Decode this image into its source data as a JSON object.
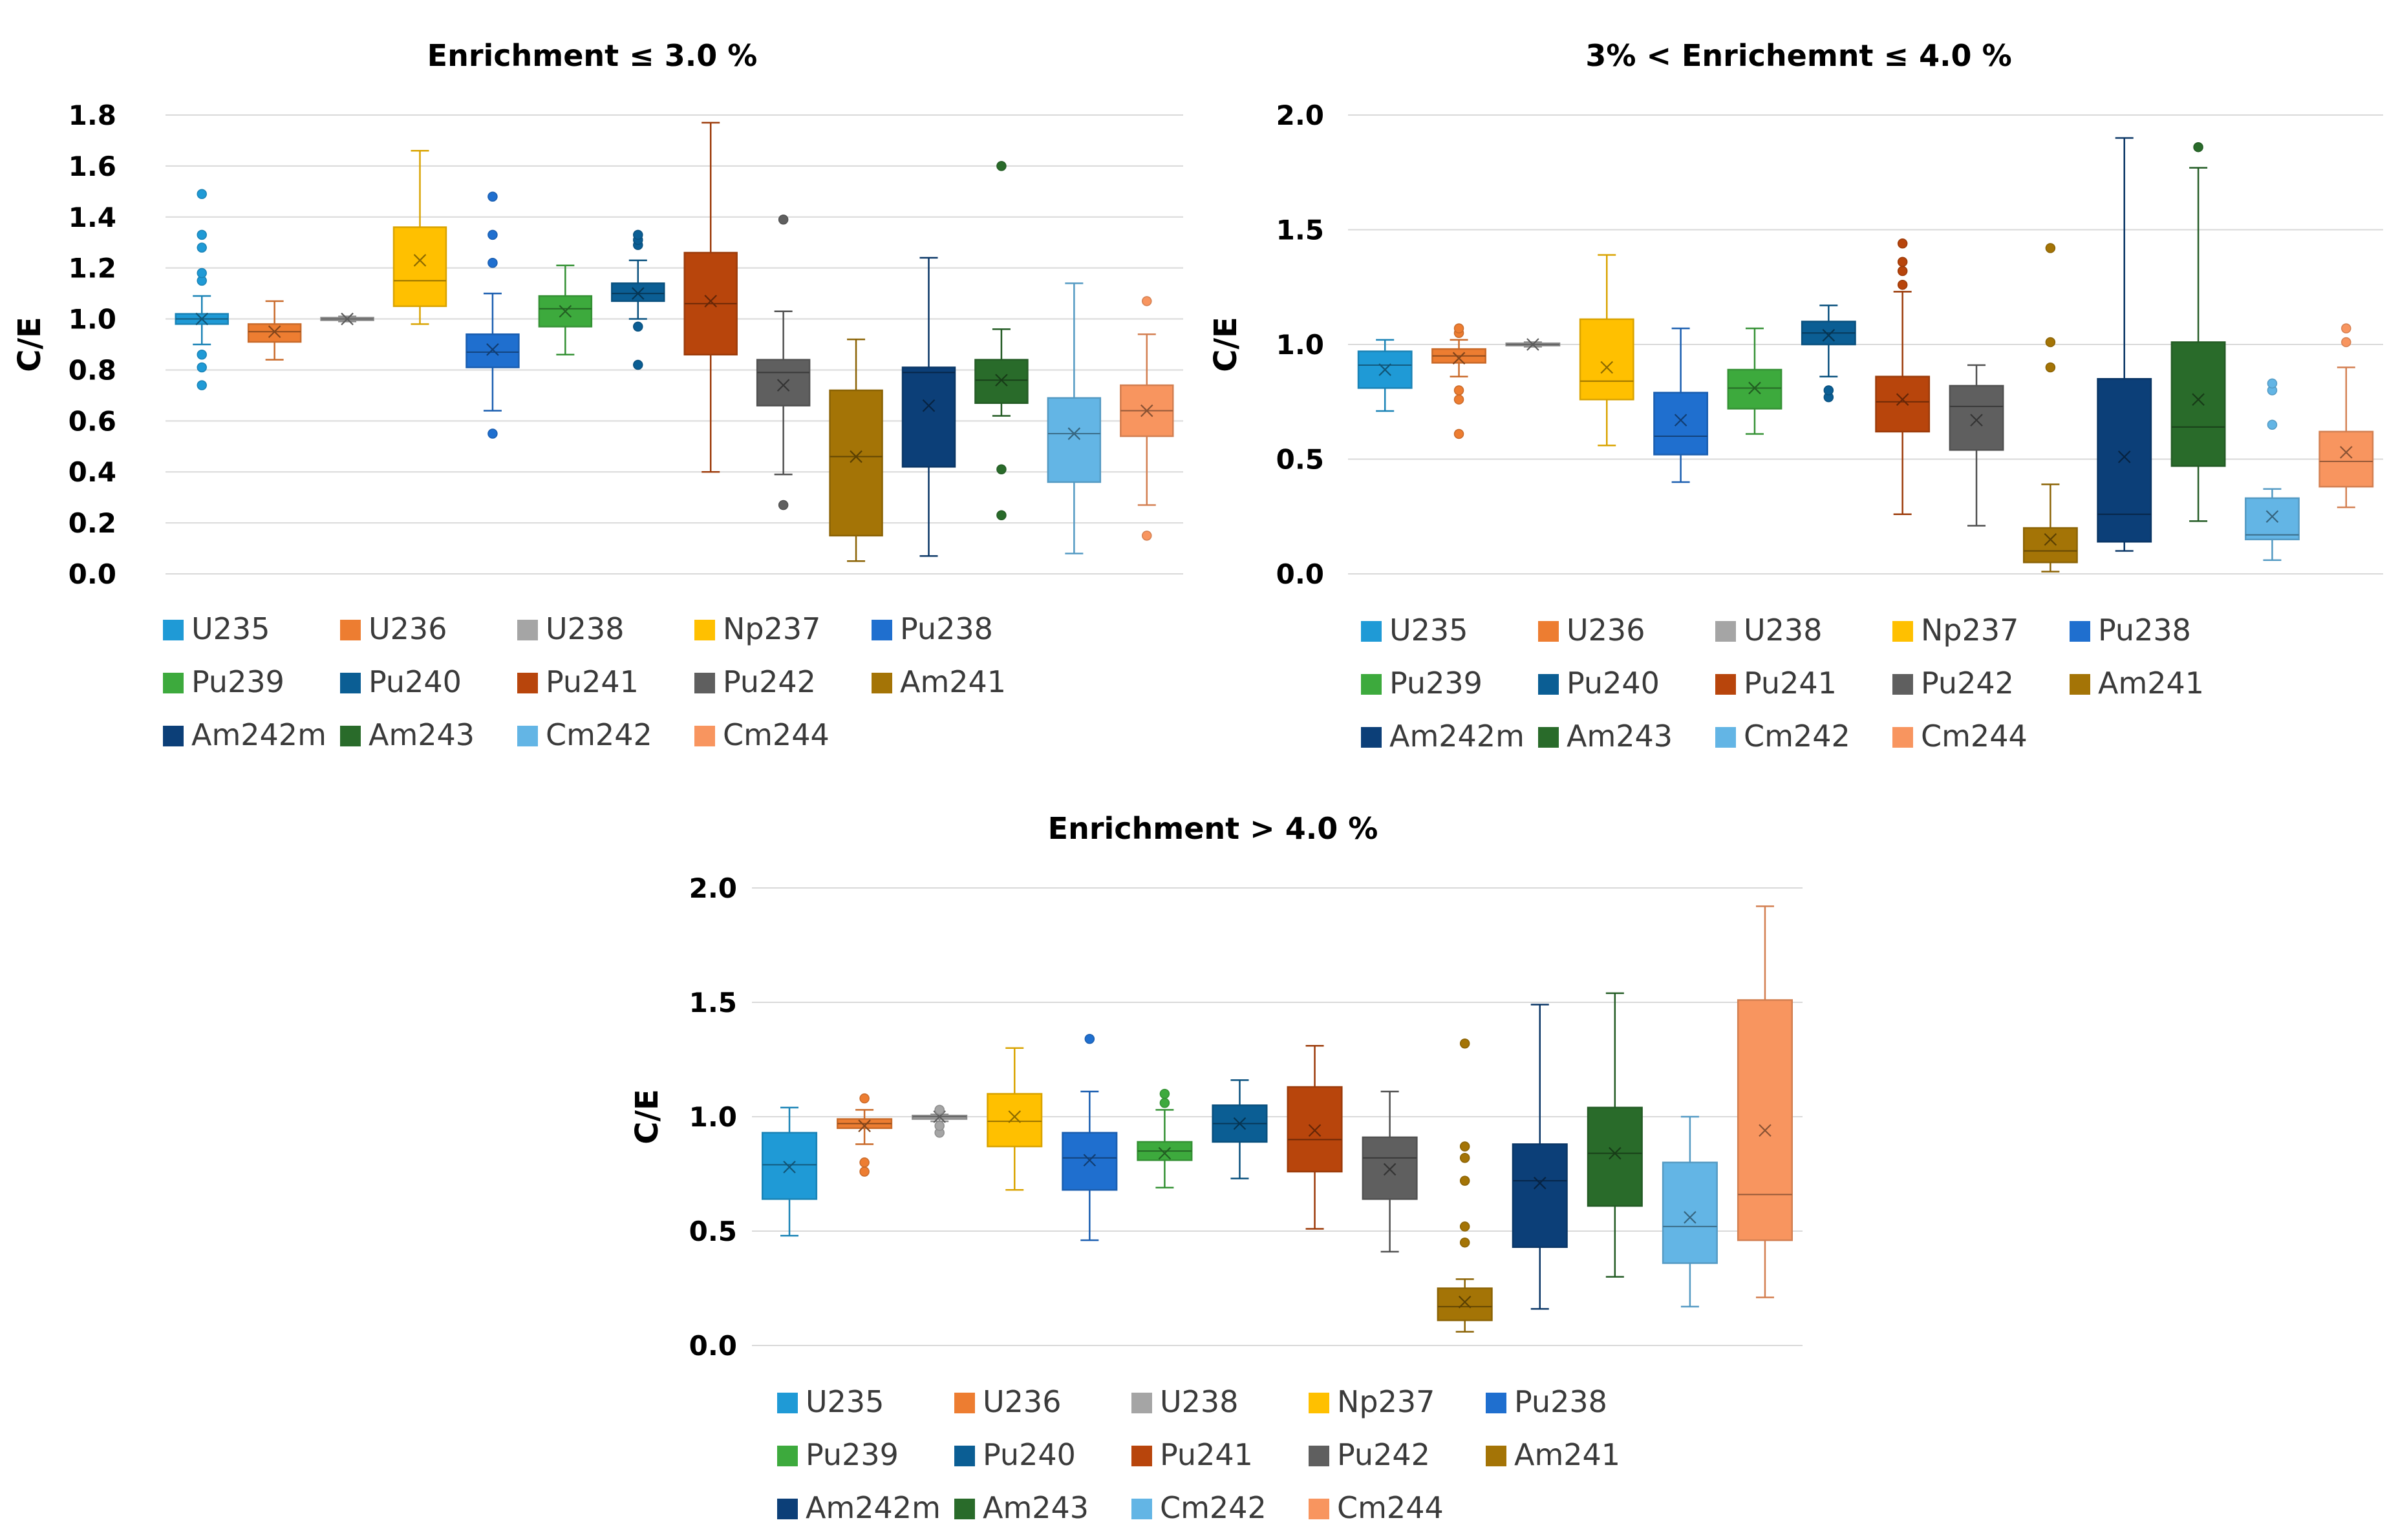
{
  "chart_data": [
    {
      "type": "box",
      "title": "Enrichment ≤ 3.0 %",
      "xlabel": "",
      "ylabel": "C/E",
      "ylim": [
        0.0,
        1.8
      ],
      "yticks": [
        "0.0",
        "0.2",
        "0.4",
        "0.6",
        "0.8",
        "1.0",
        "1.2",
        "1.4",
        "1.6",
        "1.8"
      ],
      "ytick_values": [
        0,
        0.2,
        0.4,
        0.6,
        0.8,
        1.0,
        1.2,
        1.4,
        1.6,
        1.8
      ],
      "grid": true,
      "legend_position": "bottom",
      "series": [
        {
          "name": "U235",
          "color": "#1f9ad6",
          "min": 0.9,
          "q1": 0.98,
          "median": 1.0,
          "q3": 1.02,
          "max": 1.09,
          "mean": 1.0,
          "outliers": [
            0.74,
            0.81,
            0.86,
            1.15,
            1.18,
            1.28,
            1.33,
            1.49
          ]
        },
        {
          "name": "U236",
          "color": "#ed7d31",
          "min": 0.84,
          "q1": 0.91,
          "median": 0.95,
          "q3": 0.98,
          "max": 1.07,
          "mean": 0.95,
          "outliers": []
        },
        {
          "name": "U238",
          "color": "#a5a5a5",
          "min": 0.99,
          "q1": 0.995,
          "median": 1.0,
          "q3": 1.005,
          "max": 1.01,
          "mean": 1.0,
          "outliers": []
        },
        {
          "name": "Np237",
          "color": "#ffc000",
          "min": 0.98,
          "q1": 1.05,
          "median": 1.15,
          "q3": 1.36,
          "max": 1.66,
          "mean": 1.23,
          "outliers": []
        },
        {
          "name": "Pu238",
          "color": "#1f6fcf",
          "min": 0.64,
          "q1": 0.81,
          "median": 0.87,
          "q3": 0.94,
          "max": 1.1,
          "mean": 0.88,
          "outliers": [
            0.55,
            1.22,
            1.33,
            1.48
          ]
        },
        {
          "name": "Pu239",
          "color": "#3daa3d",
          "min": 0.86,
          "q1": 0.97,
          "median": 1.04,
          "q3": 1.09,
          "max": 1.21,
          "mean": 1.03,
          "outliers": []
        },
        {
          "name": "Pu240",
          "color": "#0b5e94",
          "min": 1.0,
          "q1": 1.07,
          "median": 1.1,
          "q3": 1.14,
          "max": 1.23,
          "mean": 1.1,
          "outliers": [
            0.82,
            0.97,
            1.29,
            1.31,
            1.33
          ]
        },
        {
          "name": "Pu241",
          "color": "#b8450c",
          "min": 0.4,
          "q1": 0.86,
          "median": 1.06,
          "q3": 1.26,
          "max": 1.77,
          "mean": 1.07,
          "outliers": []
        },
        {
          "name": "Pu242",
          "color": "#5f5f5f",
          "min": 0.39,
          "q1": 0.66,
          "median": 0.79,
          "q3": 0.84,
          "max": 1.03,
          "mean": 0.74,
          "outliers": [
            0.27,
            1.39
          ]
        },
        {
          "name": "Am241",
          "color": "#a47406",
          "min": 0.05,
          "q1": 0.15,
          "median": 0.46,
          "q3": 0.72,
          "max": 0.92,
          "mean": 0.46,
          "outliers": []
        },
        {
          "name": "Am242m",
          "color": "#0c3f78",
          "min": 0.07,
          "q1": 0.42,
          "median": 0.79,
          "q3": 0.81,
          "max": 1.24,
          "mean": 0.66,
          "outliers": []
        },
        {
          "name": "Am243",
          "color": "#296b2a",
          "min": 0.62,
          "q1": 0.67,
          "median": 0.76,
          "q3": 0.84,
          "max": 0.96,
          "mean": 0.76,
          "outliers": [
            0.23,
            0.41,
            1.6
          ]
        },
        {
          "name": "Cm242",
          "color": "#63b5e5",
          "min": 0.08,
          "q1": 0.36,
          "median": 0.55,
          "q3": 0.69,
          "max": 1.14,
          "mean": 0.55,
          "outliers": []
        },
        {
          "name": "Cm244",
          "color": "#f8955f",
          "min": 0.27,
          "q1": 0.54,
          "median": 0.64,
          "q3": 0.74,
          "max": 0.94,
          "mean": 0.64,
          "outliers": [
            0.15,
            1.07
          ]
        }
      ]
    },
    {
      "type": "box",
      "title": "3% < Enrichemnt ≤ 4.0 %",
      "xlabel": "",
      "ylabel": "C/E",
      "ylim": [
        0.0,
        2.0
      ],
      "yticks": [
        "0.0",
        "0.5",
        "1.0",
        "1.5",
        "2.0"
      ],
      "ytick_values": [
        0,
        0.5,
        1.0,
        1.5,
        2.0
      ],
      "grid": true,
      "legend_position": "bottom",
      "series": [
        {
          "name": "U235",
          "color": "#1f9ad6",
          "min": 0.71,
          "q1": 0.81,
          "median": 0.91,
          "q3": 0.97,
          "max": 1.02,
          "mean": 0.89,
          "outliers": []
        },
        {
          "name": "U236",
          "color": "#ed7d31",
          "min": 0.86,
          "q1": 0.92,
          "median": 0.95,
          "q3": 0.98,
          "max": 1.02,
          "mean": 0.94,
          "outliers": [
            0.61,
            0.76,
            0.8,
            1.05,
            1.07
          ]
        },
        {
          "name": "U238",
          "color": "#a5a5a5",
          "min": 0.99,
          "q1": 0.995,
          "median": 1.0,
          "q3": 1.005,
          "max": 1.01,
          "mean": 1.0,
          "outliers": []
        },
        {
          "name": "Np237",
          "color": "#ffc000",
          "min": 0.56,
          "q1": 0.76,
          "median": 0.84,
          "q3": 1.11,
          "max": 1.39,
          "mean": 0.9,
          "outliers": []
        },
        {
          "name": "Pu238",
          "color": "#1f6fcf",
          "min": 0.4,
          "q1": 0.52,
          "median": 0.6,
          "q3": 0.79,
          "max": 1.07,
          "mean": 0.67,
          "outliers": []
        },
        {
          "name": "Pu239",
          "color": "#3daa3d",
          "min": 0.61,
          "q1": 0.72,
          "median": 0.81,
          "q3": 0.89,
          "max": 1.07,
          "mean": 0.81,
          "outliers": []
        },
        {
          "name": "Pu240",
          "color": "#0b5e94",
          "min": 0.86,
          "q1": 1.0,
          "median": 1.05,
          "q3": 1.1,
          "max": 1.17,
          "mean": 1.04,
          "outliers": [
            0.77,
            0.8
          ]
        },
        {
          "name": "Pu241",
          "color": "#b8450c",
          "min": 0.26,
          "q1": 0.62,
          "median": 0.75,
          "q3": 0.86,
          "max": 1.23,
          "mean": 0.76,
          "outliers": [
            1.26,
            1.32,
            1.36,
            1.44
          ]
        },
        {
          "name": "Pu242",
          "color": "#5f5f5f",
          "min": 0.21,
          "q1": 0.54,
          "median": 0.73,
          "q3": 0.82,
          "max": 0.91,
          "mean": 0.67,
          "outliers": []
        },
        {
          "name": "Am241",
          "color": "#a47406",
          "min": 0.01,
          "q1": 0.05,
          "median": 0.1,
          "q3": 0.2,
          "max": 0.39,
          "mean": 0.15,
          "outliers": [
            0.9,
            1.01,
            1.42
          ]
        },
        {
          "name": "Am242m",
          "color": "#0c3f78",
          "min": 0.1,
          "q1": 0.14,
          "median": 0.26,
          "q3": 0.85,
          "max": 1.9,
          "mean": 0.51,
          "outliers": []
        },
        {
          "name": "Am243",
          "color": "#296b2a",
          "min": 0.23,
          "q1": 0.47,
          "median": 0.64,
          "q3": 1.01,
          "max": 1.77,
          "mean": 0.76,
          "outliers": [
            1.86
          ]
        },
        {
          "name": "Cm242",
          "color": "#63b5e5",
          "min": 0.06,
          "q1": 0.15,
          "median": 0.17,
          "q3": 0.33,
          "max": 0.37,
          "mean": 0.25,
          "outliers": [
            0.65,
            0.8,
            0.83
          ]
        },
        {
          "name": "Cm244",
          "color": "#f8955f",
          "min": 0.29,
          "q1": 0.38,
          "median": 0.49,
          "q3": 0.62,
          "max": 0.9,
          "mean": 0.53,
          "outliers": [
            1.01,
            1.07
          ]
        }
      ]
    },
    {
      "type": "box",
      "title": "Enrichment > 4.0 %",
      "xlabel": "",
      "ylabel": "C/E",
      "ylim": [
        0.0,
        2.0
      ],
      "yticks": [
        "0.0",
        "0.5",
        "1.0",
        "1.5",
        "2.0"
      ],
      "ytick_values": [
        0,
        0.5,
        1.0,
        1.5,
        2.0
      ],
      "grid": true,
      "legend_position": "bottom",
      "series": [
        {
          "name": "U235",
          "color": "#1f9ad6",
          "min": 0.48,
          "q1": 0.64,
          "median": 0.79,
          "q3": 0.93,
          "max": 1.04,
          "mean": 0.78,
          "outliers": []
        },
        {
          "name": "U236",
          "color": "#ed7d31",
          "min": 0.88,
          "q1": 0.95,
          "median": 0.97,
          "q3": 0.99,
          "max": 1.03,
          "mean": 0.96,
          "outliers": [
            0.76,
            0.8,
            1.08
          ]
        },
        {
          "name": "U238",
          "color": "#a5a5a5",
          "min": 0.98,
          "q1": 0.99,
          "median": 1.0,
          "q3": 1.005,
          "max": 1.01,
          "mean": 1.0,
          "outliers": [
            0.93,
            0.96,
            1.03
          ]
        },
        {
          "name": "Np237",
          "color": "#ffc000",
          "min": 0.68,
          "q1": 0.87,
          "median": 0.98,
          "q3": 1.1,
          "max": 1.3,
          "mean": 1.0,
          "outliers": []
        },
        {
          "name": "Pu238",
          "color": "#1f6fcf",
          "min": 0.46,
          "q1": 0.68,
          "median": 0.82,
          "q3": 0.93,
          "max": 1.11,
          "mean": 0.81,
          "outliers": [
            1.34
          ]
        },
        {
          "name": "Pu239",
          "color": "#3daa3d",
          "min": 0.69,
          "q1": 0.81,
          "median": 0.85,
          "q3": 0.89,
          "max": 1.03,
          "mean": 0.84,
          "outliers": [
            1.06,
            1.1
          ]
        },
        {
          "name": "Pu240",
          "color": "#0b5e94",
          "min": 0.73,
          "q1": 0.89,
          "median": 0.97,
          "q3": 1.05,
          "max": 1.16,
          "mean": 0.97,
          "outliers": []
        },
        {
          "name": "Pu241",
          "color": "#b8450c",
          "min": 0.51,
          "q1": 0.76,
          "median": 0.9,
          "q3": 1.13,
          "max": 1.31,
          "mean": 0.94,
          "outliers": []
        },
        {
          "name": "Pu242",
          "color": "#5f5f5f",
          "min": 0.41,
          "q1": 0.64,
          "median": 0.82,
          "q3": 0.91,
          "max": 1.11,
          "mean": 0.77,
          "outliers": []
        },
        {
          "name": "Am241",
          "color": "#a47406",
          "min": 0.06,
          "q1": 0.11,
          "median": 0.17,
          "q3": 0.25,
          "max": 0.29,
          "mean": 0.19,
          "outliers": [
            0.45,
            0.52,
            0.72,
            0.82,
            0.87,
            1.32
          ]
        },
        {
          "name": "Am242m",
          "color": "#0c3f78",
          "min": 0.16,
          "q1": 0.43,
          "median": 0.72,
          "q3": 0.88,
          "max": 1.49,
          "mean": 0.71,
          "outliers": []
        },
        {
          "name": "Am243",
          "color": "#296b2a",
          "min": 0.3,
          "q1": 0.61,
          "median": 0.84,
          "q3": 1.04,
          "max": 1.54,
          "mean": 0.84,
          "outliers": []
        },
        {
          "name": "Cm242",
          "color": "#63b5e5",
          "min": 0.17,
          "q1": 0.36,
          "median": 0.52,
          "q3": 0.8,
          "max": 1.0,
          "mean": 0.56,
          "outliers": []
        },
        {
          "name": "Cm244",
          "color": "#f8955f",
          "min": 0.21,
          "q1": 0.46,
          "median": 0.66,
          "q3": 1.51,
          "max": 1.92,
          "mean": 0.94,
          "outliers": []
        }
      ]
    }
  ]
}
